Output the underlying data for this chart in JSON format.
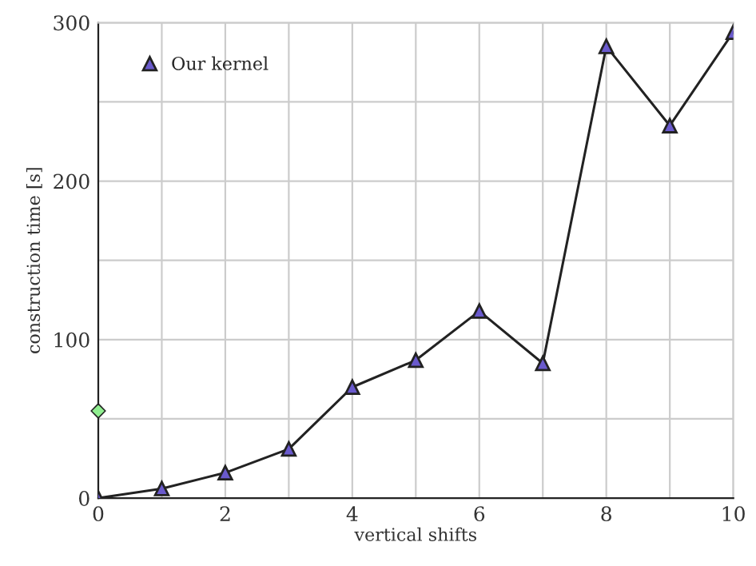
{
  "chart_data": {
    "type": "line",
    "xlabel": "vertical shifts",
    "ylabel": "construction time [s]",
    "xlim": [
      0,
      10
    ],
    "ylim": [
      0,
      300
    ],
    "xticks": [
      0,
      {
        "value": 1,
        "label": null
      },
      2,
      {
        "value": 3,
        "label": null
      },
      4,
      {
        "value": 5,
        "label": null
      },
      6,
      {
        "value": 7,
        "label": null
      },
      8,
      {
        "value": 9,
        "label": null
      },
      10
    ],
    "yticks": [
      0,
      {
        "value": 50,
        "label": null
      },
      100,
      {
        "value": 150,
        "label": null
      },
      200,
      {
        "value": 250,
        "label": null
      },
      300
    ],
    "grid": true,
    "legend": "top left",
    "series": [
      {
        "name": "Our kernel",
        "marker": "triangle",
        "color": "#6a5acd",
        "x": [
          0,
          1,
          2,
          3,
          4,
          5,
          6,
          7,
          8,
          9,
          10
        ],
        "values": [
          0,
          6,
          16,
          31,
          70,
          87,
          118,
          85,
          285,
          235,
          294
        ]
      },
      {
        "type": "scatter",
        "marker": "diamond",
        "color": "#90ee90",
        "x": [
          0
        ],
        "values": [
          55
        ]
      }
    ]
  }
}
